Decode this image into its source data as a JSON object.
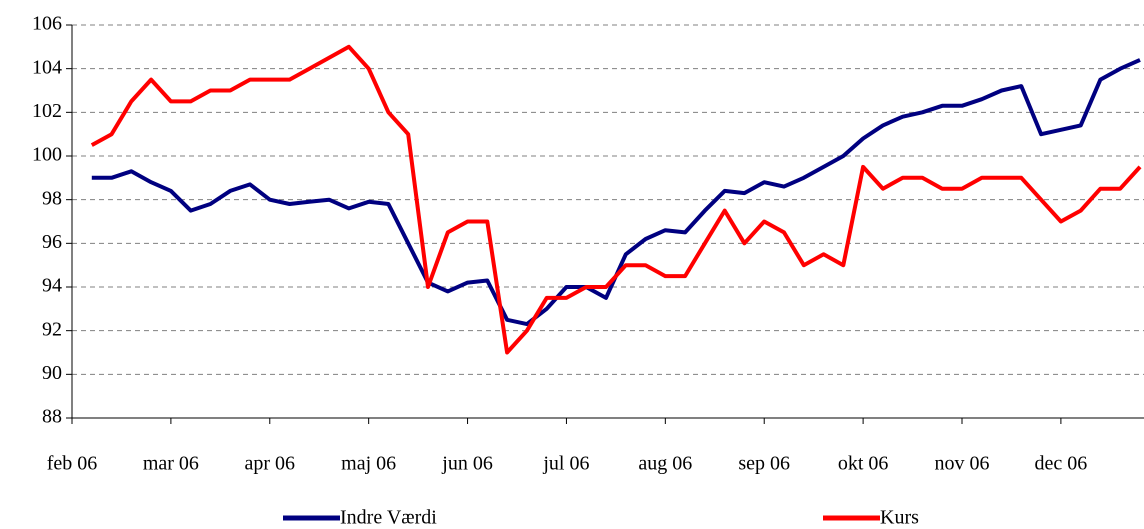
{
  "chart_data": {
    "type": "line",
    "categories": [
      "feb 06",
      null,
      null,
      null,
      null,
      "mar 06",
      null,
      null,
      null,
      null,
      "apr 06",
      null,
      null,
      null,
      null,
      "maj 06",
      null,
      null,
      null,
      null,
      "jun 06",
      null,
      null,
      null,
      null,
      "jul 06",
      null,
      null,
      null,
      null,
      "aug 06",
      null,
      null,
      null,
      null,
      "sep 06",
      null,
      null,
      null,
      null,
      "okt 06",
      null,
      null,
      null,
      null,
      "nov 06",
      null,
      null,
      null,
      null,
      "dec 06",
      null,
      null,
      null,
      null
    ],
    "series": [
      {
        "name": "Indre Værdi",
        "color": "#000080",
        "values": [
          null,
          99.0,
          99.0,
          99.3,
          98.8,
          98.4,
          97.5,
          97.8,
          98.4,
          98.7,
          98.0,
          97.8,
          97.9,
          98.0,
          97.6,
          97.9,
          97.8,
          96.0,
          94.2,
          93.8,
          94.2,
          94.3,
          92.5,
          92.3,
          93.0,
          94.0,
          94.0,
          93.5,
          95.5,
          96.2,
          96.6,
          96.5,
          97.5,
          98.4,
          98.3,
          98.8,
          98.6,
          99.0,
          99.5,
          100.0,
          100.8,
          101.4,
          101.8,
          102.0,
          102.3,
          102.3,
          102.6,
          103.0,
          103.2,
          101.0,
          101.2,
          101.4,
          103.5,
          104.0,
          104.4
        ]
      },
      {
        "name": "Kurs",
        "color": "#ff0000",
        "values": [
          null,
          100.5,
          101.0,
          102.5,
          103.5,
          102.5,
          102.5,
          103.0,
          103.0,
          103.5,
          103.5,
          103.5,
          104.0,
          104.5,
          105.0,
          104.0,
          102.0,
          101.0,
          94.0,
          96.5,
          97.0,
          97.0,
          91.0,
          92.0,
          93.5,
          93.5,
          94.0,
          94.0,
          95.0,
          95.0,
          94.5,
          94.5,
          96.0,
          97.5,
          96.0,
          97.0,
          96.5,
          95.0,
          95.5,
          95.0,
          99.5,
          98.5,
          99.0,
          99.0,
          98.5,
          98.5,
          99.0,
          99.0,
          99.0,
          98.0,
          97.0,
          97.5,
          98.5,
          98.5,
          99.5
        ]
      }
    ],
    "ylim": [
      88,
      106
    ],
    "yticks": [
      88,
      90,
      92,
      94,
      96,
      98,
      100,
      102,
      104,
      106
    ],
    "grid": true
  }
}
